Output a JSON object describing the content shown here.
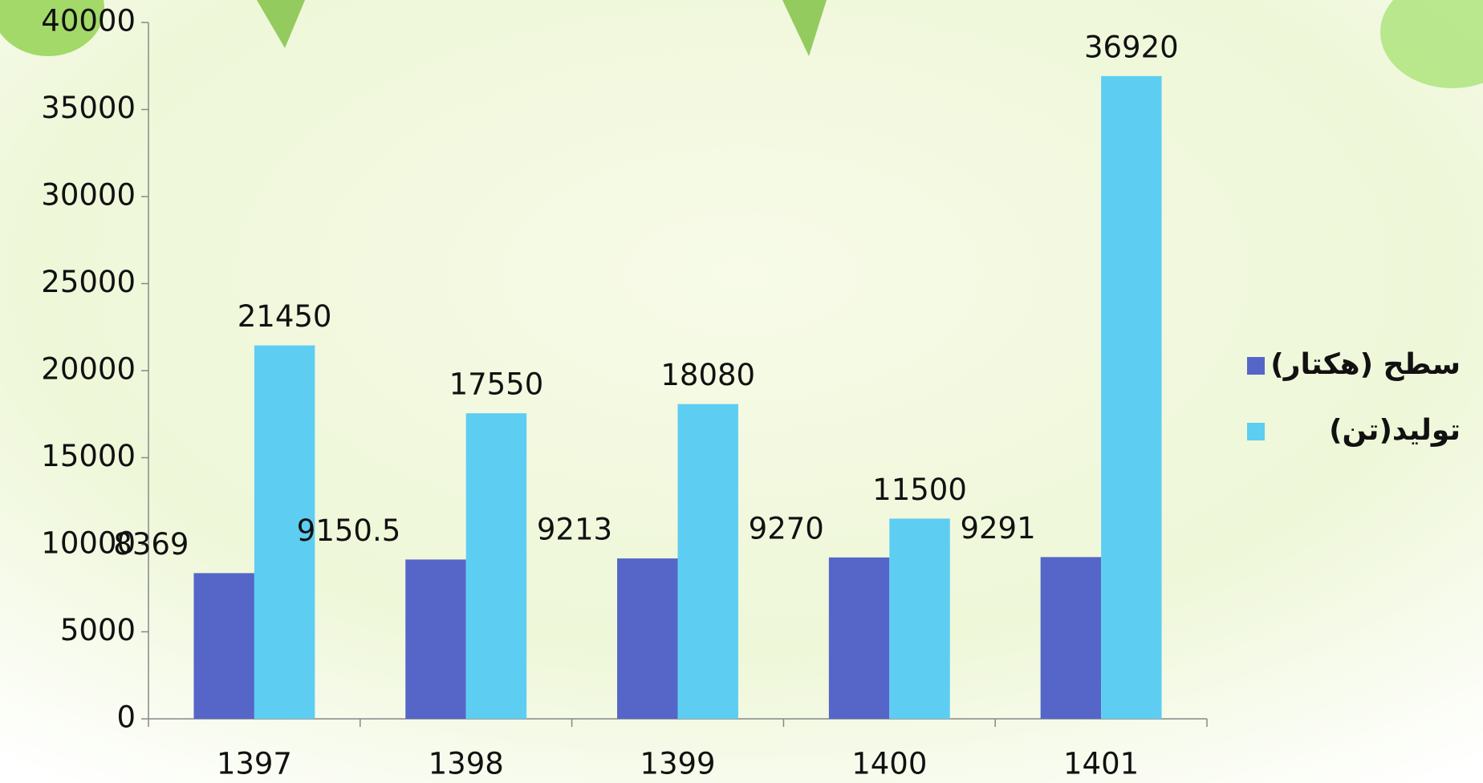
{
  "chart_data": {
    "type": "bar",
    "categories": [
      "1397",
      "1398",
      "1399",
      "1400",
      "1401"
    ],
    "series": [
      {
        "name": "سطح (هکتار)",
        "color": "#5566c8",
        "label_color": "#111111",
        "values": [
          8369,
          9150.5,
          9213,
          9270,
          9291
        ]
      },
      {
        "name": "تولید(تن)",
        "color": "#5ecdf2",
        "label_color": "#c00000",
        "values": [
          21450,
          17550,
          18080,
          11500,
          36920
        ]
      }
    ],
    "ylim": [
      0,
      40000
    ],
    "yticks": [
      0,
      5000,
      10000,
      15000,
      20000,
      25000,
      30000,
      35000,
      40000
    ],
    "legend": "right"
  }
}
